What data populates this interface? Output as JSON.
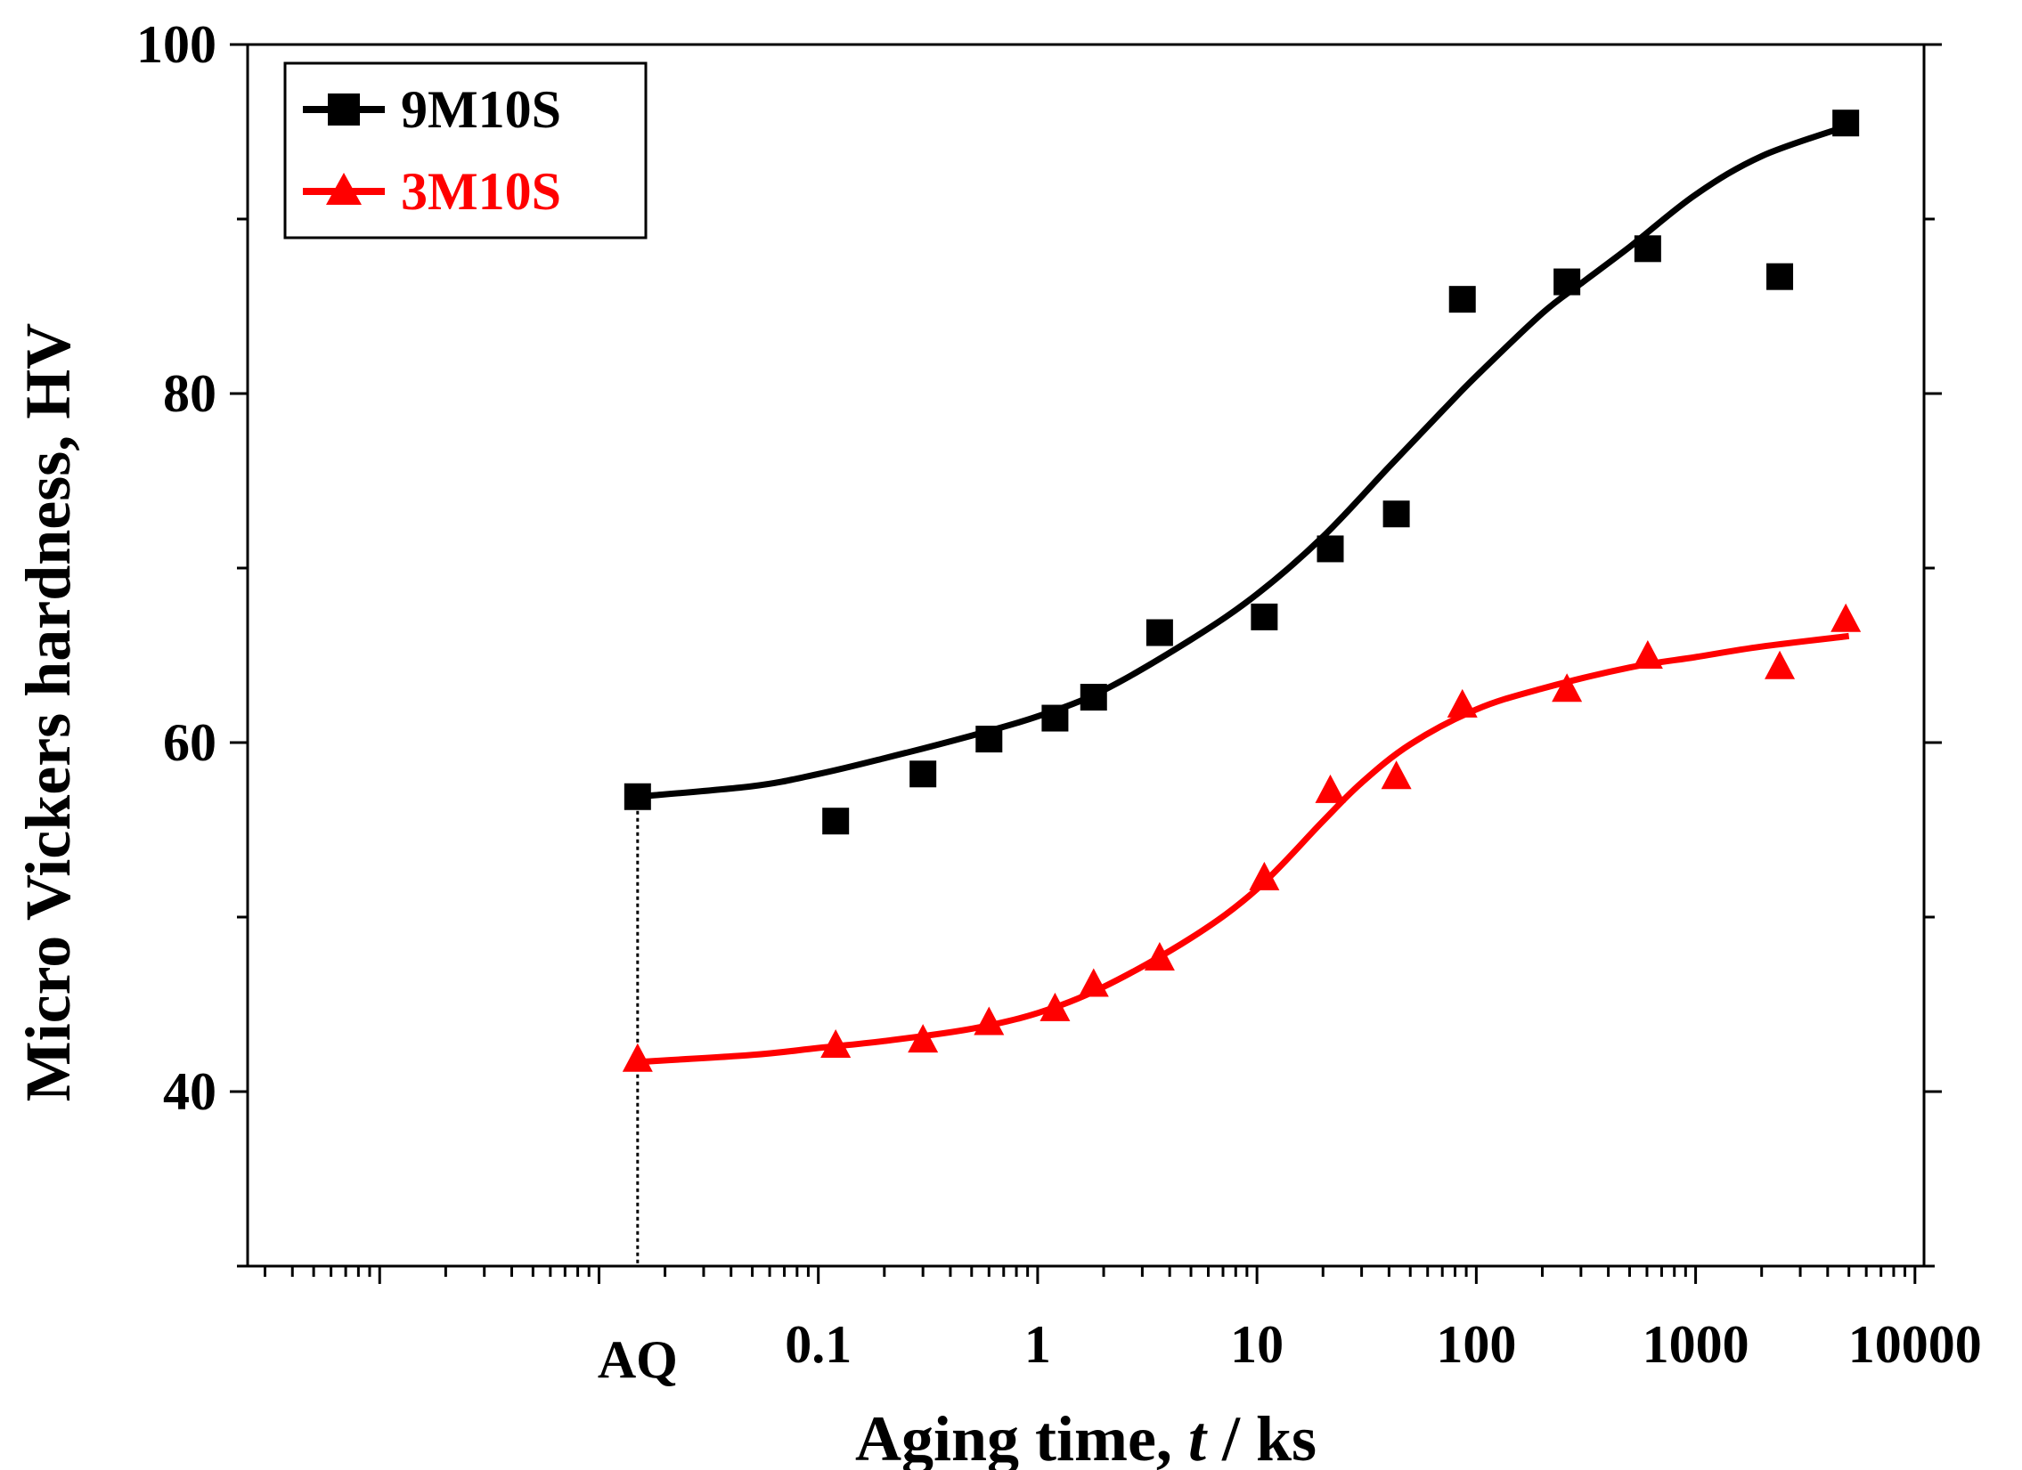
{
  "chart_data": {
    "type": "scatter",
    "title": "",
    "xlabel_prefix": "Aging time, ",
    "xlabel_var": "t",
    "xlabel_suffix": " / ks",
    "ylabel": "Micro Vickers hardness, HV",
    "x_scale": "log",
    "xlim": [
      0.00025,
      11000
    ],
    "ylim": [
      30,
      100
    ],
    "y_ticks": [
      40,
      60,
      80,
      100
    ],
    "x_ticks": [
      {
        "value": 0.1,
        "label": "0.1"
      },
      {
        "value": 1,
        "label": "1"
      },
      {
        "value": 10,
        "label": "10"
      },
      {
        "value": 100,
        "label": "100"
      },
      {
        "value": 1000,
        "label": "1000"
      },
      {
        "value": 10000,
        "label": "10000"
      }
    ],
    "aq_label": {
      "value": 0.015,
      "label": "AQ"
    },
    "series": [
      {
        "name": "9M10S",
        "color": "#000000",
        "marker": "square",
        "x": [
          0.015,
          0.12,
          0.3,
          0.6,
          1.2,
          1.8,
          3.6,
          10.8,
          21.6,
          43.2,
          86.4,
          259,
          605,
          2419,
          4838
        ],
        "y": [
          56.9,
          55.5,
          58.2,
          60.2,
          61.4,
          62.6,
          66.3,
          67.2,
          71.1,
          73.1,
          85.4,
          86.4,
          88.3,
          86.7,
          95.5
        ],
        "fit_x": [
          0.015,
          0.05,
          0.1,
          0.2,
          0.5,
          1,
          2,
          5,
          10,
          20,
          40,
          70,
          100,
          200,
          300,
          500,
          1000,
          2000,
          4838
        ],
        "fit_y": [
          56.9,
          57.5,
          58.2,
          59.1,
          60.4,
          61.5,
          63.0,
          65.9,
          68.5,
          71.8,
          75.8,
          79.0,
          81.0,
          84.6,
          86.3,
          88.4,
          91.4,
          93.6,
          95.3
        ]
      },
      {
        "name": "3M10S",
        "color": "#ff0000",
        "marker": "triangle",
        "x": [
          0.015,
          0.12,
          0.3,
          0.6,
          1.2,
          1.8,
          3.6,
          10.8,
          21.6,
          43.2,
          86.4,
          259,
          605,
          2419,
          4838
        ],
        "y": [
          41.8,
          42.6,
          42.9,
          43.9,
          44.7,
          46.1,
          47.6,
          52.2,
          57.2,
          58.0,
          62.1,
          63.0,
          64.9,
          64.3,
          67.0
        ],
        "fit_x": [
          0.015,
          0.05,
          0.1,
          0.2,
          0.5,
          1,
          2,
          5,
          10,
          20,
          30,
          50,
          100,
          200,
          500,
          1000,
          2000,
          5000
        ],
        "fit_y": [
          41.7,
          42.1,
          42.5,
          42.9,
          43.6,
          44.5,
          46.0,
          48.8,
          51.6,
          55.5,
          57.7,
          59.9,
          61.9,
          63.1,
          64.3,
          64.9,
          65.5,
          66.1
        ]
      }
    ]
  }
}
